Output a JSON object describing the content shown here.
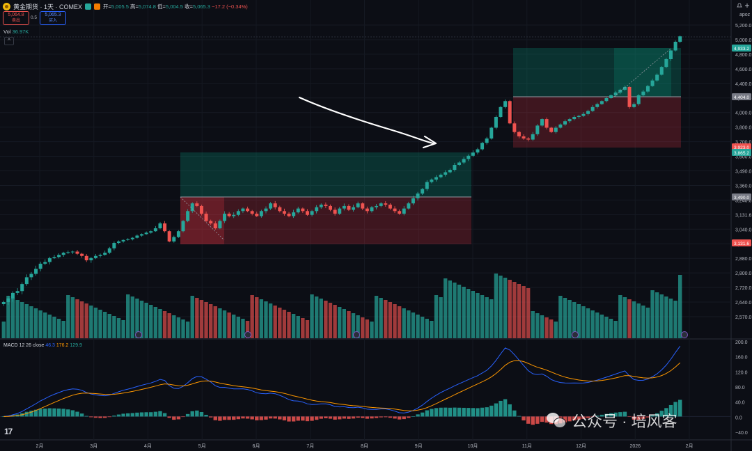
{
  "header": {
    "symbol": "黄金期货 · 1天 · COMEX",
    "open_label": "开",
    "open": "5,005.5",
    "high_label": "高",
    "high": "5,074.8",
    "low_label": "低",
    "low": "5,004.5",
    "close_label": "收",
    "close": "5,065.3",
    "change": "−17.2 (−0.34%)",
    "sell_price": "5,064.8",
    "sell_label": "卖出",
    "spread": "0.5",
    "buy_price": "5,065.3",
    "buy_label": "买入",
    "volume_label": "Vol",
    "volume_value": "36.97K",
    "collapse_glyph": "^"
  },
  "scale_mode": "apoz",
  "colors": {
    "up": "#26a69a",
    "down": "#ef5350",
    "bg": "#0c0e15",
    "macd": "#2962ff",
    "signal": "#ff9800"
  },
  "macd_legend": {
    "label": "MACD 12 26 close",
    "macd": "46.3",
    "signal": "176.2",
    "hist": "129.9"
  },
  "watermark": {
    "text": "公众号 · 培风客",
    "icon": "wechat-icon"
  },
  "logo_text": "17",
  "chart_data": {
    "type": "candlestick",
    "price_ticks": [
      "5,200.0",
      "5,000.0",
      "4,800.0",
      "4,600.0",
      "4,400.0",
      "4,200.0",
      "4,000.0",
      "3,800.0",
      "3,700.0",
      "3,600.0",
      "3,490.0",
      "3,360.0",
      "3,240.0",
      "3,131.6",
      "3,040.0",
      "2,960.0",
      "2,880.0",
      "2,800.0",
      "2,720.0",
      "2,640.0",
      "2,570.0"
    ],
    "price_labels": [
      {
        "value": "4,933.2",
        "color": "#26a69a"
      },
      {
        "value": "4,404.0",
        "color": "#787b86"
      },
      {
        "value": "3,923.0",
        "color": "#ef5350"
      },
      {
        "value": "3,865.2",
        "color": "#26a69a"
      },
      {
        "value": "3,490.0",
        "color": "#787b86"
      },
      {
        "value": "3,131.6",
        "color": "#ef5350"
      }
    ],
    "macd_ticks": [
      "200.0",
      "160.0",
      "120.0",
      "80.0",
      "40.0",
      "0.0",
      "−40.0"
    ],
    "x_labels": [
      "2月",
      "3月",
      "4月",
      "5月",
      "6月",
      "7月",
      "8月",
      "9月",
      "10月",
      "11月",
      "12月",
      "2026",
      "2月"
    ],
    "close_series": [
      2640,
      2660,
      2690,
      2700,
      2740,
      2780,
      2800,
      2830,
      2860,
      2870,
      2900,
      2910,
      2930,
      2950,
      2955,
      2960,
      2940,
      2920,
      2880,
      2900,
      2920,
      2930,
      2950,
      2990,
      3040,
      3060,
      3080,
      3090,
      3110,
      3140,
      3160,
      3180,
      3200,
      3240,
      3280,
      3200,
      3060,
      3120,
      3200,
      3300,
      3380,
      3440,
      3420,
      3360,
      3300,
      3280,
      3240,
      3300,
      3360,
      3340,
      3350,
      3380,
      3400,
      3380,
      3360,
      3340,
      3380,
      3400,
      3440,
      3410,
      3380,
      3360,
      3340,
      3370,
      3400,
      3380,
      3350,
      3380,
      3410,
      3430,
      3420,
      3390,
      3360,
      3400,
      3420,
      3390,
      3410,
      3440,
      3400,
      3380,
      3410,
      3420,
      3440,
      3430,
      3400,
      3380,
      3360,
      3400,
      3440,
      3480,
      3520,
      3560,
      3620,
      3640,
      3660,
      3680,
      3700,
      3720,
      3760,
      3780,
      3810,
      3840,
      3870,
      3900,
      3960,
      4000,
      4100,
      4200,
      4300,
      4360,
      4140,
      4060,
      4020,
      4000,
      3990,
      4040,
      4120,
      4180,
      4100,
      4060,
      4100,
      4130,
      4160,
      4180,
      4200,
      4210,
      4230,
      4260,
      4300,
      4330,
      4360,
      4390,
      4420,
      4450,
      4480,
      4510,
      4300,
      4330,
      4420,
      4460,
      4520,
      4580,
      4640,
      4720,
      4800,
      4900,
      5000,
      5065
    ]
  }
}
